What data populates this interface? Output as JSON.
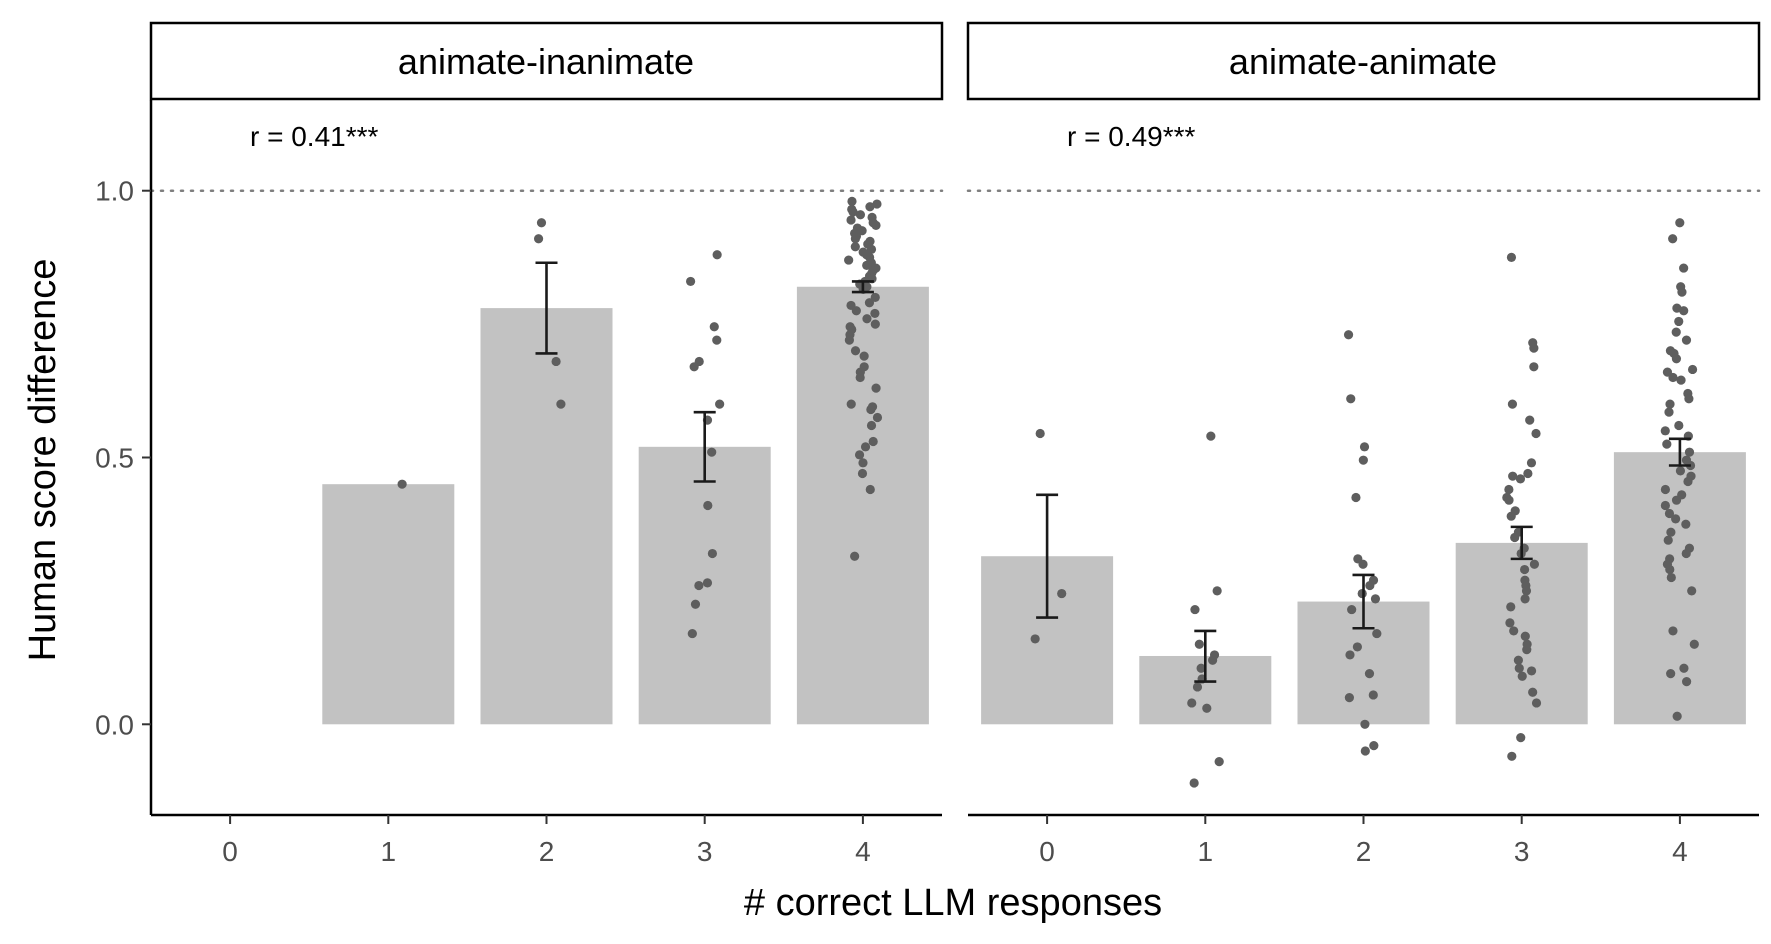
{
  "chart_data": {
    "type": "bar",
    "xlabel": "# correct LLM responses",
    "ylabel": "Human score difference",
    "categories": [
      "0",
      "1",
      "2",
      "3",
      "4"
    ],
    "ylim": [
      -0.17,
      1.17
    ],
    "yticks": [
      "0.0",
      "0.5",
      "1.0"
    ],
    "reference_line": 1.0,
    "panels": [
      {
        "name": "animate-inanimate",
        "annotation": "r = 0.41***",
        "bars": [
          {
            "x": 1,
            "value": 0.45
          },
          {
            "x": 2,
            "value": 0.78,
            "err": [
              0.695,
              0.865
            ]
          },
          {
            "x": 3,
            "value": 0.52,
            "err": [
              0.455,
              0.585
            ]
          },
          {
            "x": 4,
            "value": 0.82,
            "err": [
              0.81,
              0.83
            ]
          }
        ],
        "points": [
          [
            1,
            0.45
          ],
          [
            2,
            0.94
          ],
          [
            2,
            0.91
          ],
          [
            2,
            0.68
          ],
          [
            2,
            0.6
          ],
          [
            3,
            0.88
          ],
          [
            3,
            0.83
          ],
          [
            3,
            0.745
          ],
          [
            3,
            0.72
          ],
          [
            3,
            0.68
          ],
          [
            3,
            0.67
          ],
          [
            3,
            0.6
          ],
          [
            3,
            0.57
          ],
          [
            3,
            0.51
          ],
          [
            3,
            0.41
          ],
          [
            3,
            0.32
          ],
          [
            3,
            0.265
          ],
          [
            3,
            0.26
          ],
          [
            3,
            0.225
          ],
          [
            3,
            0.17
          ],
          [
            4,
            0.98
          ],
          [
            4,
            0.975
          ],
          [
            4,
            0.97
          ],
          [
            4,
            0.965
          ],
          [
            4,
            0.96
          ],
          [
            4,
            0.955
          ],
          [
            4,
            0.95
          ],
          [
            4,
            0.945
          ],
          [
            4,
            0.94
          ],
          [
            4,
            0.935
          ],
          [
            4,
            0.93
          ],
          [
            4,
            0.925
          ],
          [
            4,
            0.92
          ],
          [
            4,
            0.915
          ],
          [
            4,
            0.91
          ],
          [
            4,
            0.905
          ],
          [
            4,
            0.9
          ],
          [
            4,
            0.895
          ],
          [
            4,
            0.89
          ],
          [
            4,
            0.885
          ],
          [
            4,
            0.88
          ],
          [
            4,
            0.875
          ],
          [
            4,
            0.87
          ],
          [
            4,
            0.865
          ],
          [
            4,
            0.86
          ],
          [
            4,
            0.855
          ],
          [
            4,
            0.85
          ],
          [
            4,
            0.845
          ],
          [
            4,
            0.84
          ],
          [
            4,
            0.835
          ],
          [
            4,
            0.83
          ],
          [
            4,
            0.825
          ],
          [
            4,
            0.82
          ],
          [
            4,
            0.815
          ],
          [
            4,
            0.8
          ],
          [
            4,
            0.79
          ],
          [
            4,
            0.785
          ],
          [
            4,
            0.775
          ],
          [
            4,
            0.77
          ],
          [
            4,
            0.76
          ],
          [
            4,
            0.75
          ],
          [
            4,
            0.745
          ],
          [
            4,
            0.74
          ],
          [
            4,
            0.73
          ],
          [
            4,
            0.72
          ],
          [
            4,
            0.7
          ],
          [
            4,
            0.69
          ],
          [
            4,
            0.67
          ],
          [
            4,
            0.66
          ],
          [
            4,
            0.65
          ],
          [
            4,
            0.63
          ],
          [
            4,
            0.6
          ],
          [
            4,
            0.595
          ],
          [
            4,
            0.59
          ],
          [
            4,
            0.575
          ],
          [
            4,
            0.56
          ],
          [
            4,
            0.53
          ],
          [
            4,
            0.52
          ],
          [
            4,
            0.505
          ],
          [
            4,
            0.49
          ],
          [
            4,
            0.47
          ],
          [
            4,
            0.44
          ],
          [
            4,
            0.315
          ]
        ]
      },
      {
        "name": "animate-animate",
        "annotation": "r = 0.49***",
        "bars": [
          {
            "x": 0,
            "value": 0.315,
            "err": [
              0.2,
              0.43
            ]
          },
          {
            "x": 1,
            "value": 0.128,
            "err": [
              0.08,
              0.175
            ]
          },
          {
            "x": 2,
            "value": 0.23,
            "err": [
              0.18,
              0.28
            ]
          },
          {
            "x": 3,
            "value": 0.34,
            "err": [
              0.31,
              0.37
            ]
          },
          {
            "x": 4,
            "value": 0.51,
            "err": [
              0.485,
              0.535
            ]
          }
        ],
        "points": [
          [
            0,
            0.545
          ],
          [
            0,
            0.245
          ],
          [
            0,
            0.16
          ],
          [
            1,
            0.54
          ],
          [
            1,
            0.25
          ],
          [
            1,
            0.215
          ],
          [
            1,
            0.15
          ],
          [
            1,
            0.13
          ],
          [
            1,
            0.12
          ],
          [
            1,
            0.105
          ],
          [
            1,
            0.085
          ],
          [
            1,
            0.07
          ],
          [
            1,
            0.04
          ],
          [
            1,
            0.03
          ],
          [
            1,
            -0.07
          ],
          [
            1,
            -0.11
          ],
          [
            2,
            0.73
          ],
          [
            2,
            0.61
          ],
          [
            2,
            0.52
          ],
          [
            2,
            0.495
          ],
          [
            2,
            0.425
          ],
          [
            2,
            0.31
          ],
          [
            2,
            0.3
          ],
          [
            2,
            0.27
          ],
          [
            2,
            0.26
          ],
          [
            2,
            0.245
          ],
          [
            2,
            0.235
          ],
          [
            2,
            0.215
          ],
          [
            2,
            0.17
          ],
          [
            2,
            0.145
          ],
          [
            2,
            0.13
          ],
          [
            2,
            0.095
          ],
          [
            2,
            0.055
          ],
          [
            2,
            0.05
          ],
          [
            2,
            0.0
          ],
          [
            2,
            -0.04
          ],
          [
            2,
            -0.05
          ],
          [
            3,
            0.875
          ],
          [
            3,
            0.715
          ],
          [
            3,
            0.705
          ],
          [
            3,
            0.67
          ],
          [
            3,
            0.6
          ],
          [
            3,
            0.57
          ],
          [
            3,
            0.545
          ],
          [
            3,
            0.49
          ],
          [
            3,
            0.47
          ],
          [
            3,
            0.465
          ],
          [
            3,
            0.46
          ],
          [
            3,
            0.44
          ],
          [
            3,
            0.425
          ],
          [
            3,
            0.42
          ],
          [
            3,
            0.4
          ],
          [
            3,
            0.39
          ],
          [
            3,
            0.36
          ],
          [
            3,
            0.35
          ],
          [
            3,
            0.33
          ],
          [
            3,
            0.32
          ],
          [
            3,
            0.3
          ],
          [
            3,
            0.29
          ],
          [
            3,
            0.27
          ],
          [
            3,
            0.26
          ],
          [
            3,
            0.25
          ],
          [
            3,
            0.235
          ],
          [
            3,
            0.22
          ],
          [
            3,
            0.19
          ],
          [
            3,
            0.175
          ],
          [
            3,
            0.165
          ],
          [
            3,
            0.15
          ],
          [
            3,
            0.14
          ],
          [
            3,
            0.12
          ],
          [
            3,
            0.105
          ],
          [
            3,
            0.1
          ],
          [
            3,
            0.09
          ],
          [
            3,
            0.06
          ],
          [
            3,
            0.04
          ],
          [
            3,
            -0.025
          ],
          [
            3,
            -0.06
          ],
          [
            4,
            0.94
          ],
          [
            4,
            0.91
          ],
          [
            4,
            0.855
          ],
          [
            4,
            0.82
          ],
          [
            4,
            0.81
          ],
          [
            4,
            0.78
          ],
          [
            4,
            0.775
          ],
          [
            4,
            0.755
          ],
          [
            4,
            0.735
          ],
          [
            4,
            0.72
          ],
          [
            4,
            0.7
          ],
          [
            4,
            0.695
          ],
          [
            4,
            0.685
          ],
          [
            4,
            0.665
          ],
          [
            4,
            0.66
          ],
          [
            4,
            0.65
          ],
          [
            4,
            0.645
          ],
          [
            4,
            0.62
          ],
          [
            4,
            0.61
          ],
          [
            4,
            0.6
          ],
          [
            4,
            0.585
          ],
          [
            4,
            0.56
          ],
          [
            4,
            0.55
          ],
          [
            4,
            0.54
          ],
          [
            4,
            0.525
          ],
          [
            4,
            0.51
          ],
          [
            4,
            0.495
          ],
          [
            4,
            0.485
          ],
          [
            4,
            0.475
          ],
          [
            4,
            0.465
          ],
          [
            4,
            0.455
          ],
          [
            4,
            0.44
          ],
          [
            4,
            0.43
          ],
          [
            4,
            0.42
          ],
          [
            4,
            0.41
          ],
          [
            4,
            0.395
          ],
          [
            4,
            0.385
          ],
          [
            4,
            0.375
          ],
          [
            4,
            0.36
          ],
          [
            4,
            0.345
          ],
          [
            4,
            0.33
          ],
          [
            4,
            0.32
          ],
          [
            4,
            0.31
          ],
          [
            4,
            0.3
          ],
          [
            4,
            0.29
          ],
          [
            4,
            0.275
          ],
          [
            4,
            0.25
          ],
          [
            4,
            0.175
          ],
          [
            4,
            0.15
          ],
          [
            4,
            0.105
          ],
          [
            4,
            0.095
          ],
          [
            4,
            0.08
          ],
          [
            4,
            0.015
          ]
        ]
      }
    ]
  }
}
